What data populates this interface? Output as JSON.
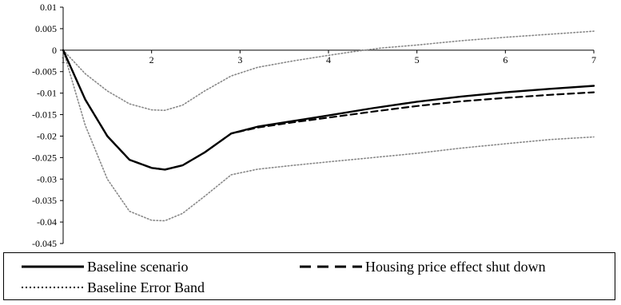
{
  "chart_data": {
    "type": "line",
    "title": "",
    "xlabel": "",
    "ylabel": "",
    "xlim": [
      1,
      7
    ],
    "ylim": [
      -0.045,
      0.01
    ],
    "x_ticks": [
      "1",
      "2",
      "3",
      "4",
      "5",
      "6",
      "7"
    ],
    "y_ticks": [
      "0.01",
      "0.005",
      "0",
      "-0.005",
      "-0.01",
      "-0.015",
      "-0.02",
      "-0.025",
      "-0.03",
      "-0.035",
      "-0.04",
      "-0.045"
    ],
    "grid": false,
    "legend_placement": "bottom",
    "series": [
      {
        "name": "Baseline scenario",
        "style": "solid",
        "color": "#000000",
        "x": [
          1,
          1.25,
          1.5,
          1.75,
          2,
          2.15,
          2.35,
          2.6,
          2.9,
          3.2,
          3.6,
          4,
          4.5,
          5,
          5.5,
          6,
          6.5,
          7
        ],
        "y": [
          0,
          -0.0115,
          -0.02,
          -0.0255,
          -0.0274,
          -0.0278,
          -0.0268,
          -0.0238,
          -0.0194,
          -0.0178,
          -0.0165,
          -0.0152,
          -0.0135,
          -0.012,
          -0.0108,
          -0.0098,
          -0.009,
          -0.0083
        ]
      },
      {
        "name": "Housing price effect shut down",
        "style": "dashed",
        "color": "#000000",
        "x": [
          1,
          1.25,
          1.5,
          1.75,
          2,
          2.15,
          2.35,
          2.6,
          2.9,
          3.2,
          3.6,
          4,
          4.5,
          5,
          5.5,
          6,
          6.5,
          7
        ],
        "y": [
          0,
          -0.0115,
          -0.02,
          -0.0255,
          -0.0274,
          -0.0278,
          -0.0268,
          -0.0238,
          -0.0194,
          -0.018,
          -0.0168,
          -0.0157,
          -0.0143,
          -0.013,
          -0.0119,
          -0.0111,
          -0.0104,
          -0.0098
        ]
      },
      {
        "name": "Baseline Error Band",
        "style": "dotted",
        "color": "#888888",
        "x": [
          1,
          1.25,
          1.5,
          1.75,
          2,
          2.15,
          2.35,
          2.6,
          2.9,
          3.2,
          3.6,
          4,
          4.3,
          4.6,
          5,
          5.5,
          6,
          6.5,
          7
        ],
        "y": [
          0,
          -0.0055,
          -0.0095,
          -0.0125,
          -0.0139,
          -0.014,
          -0.0128,
          -0.0095,
          -0.006,
          -0.004,
          -0.0025,
          -0.0012,
          -0.0003,
          0.0005,
          0.0012,
          0.0022,
          0.003,
          0.0037,
          0.0044
        ]
      },
      {
        "name": "",
        "style": "dotted",
        "color": "#888888",
        "x": [
          1,
          1.25,
          1.5,
          1.75,
          2,
          2.15,
          2.35,
          2.6,
          2.9,
          3.2,
          3.6,
          4,
          4.5,
          5,
          5.5,
          6,
          6.5,
          7
        ],
        "y": [
          0,
          -0.0175,
          -0.03,
          -0.0375,
          -0.0396,
          -0.0397,
          -0.038,
          -0.034,
          -0.029,
          -0.0277,
          -0.0268,
          -0.026,
          -0.025,
          -0.024,
          -0.0228,
          -0.0218,
          -0.0208,
          -0.0202
        ]
      }
    ]
  },
  "legend": {
    "baseline": "Baseline scenario",
    "shutdown": "Housing price effect shut down",
    "band": "Baseline Error Band"
  }
}
